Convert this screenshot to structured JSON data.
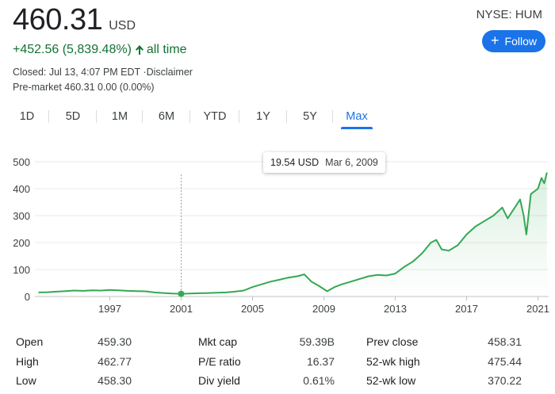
{
  "quote": {
    "price": "460.31",
    "currency": "USD",
    "change": "+452.56 (5,839.48%)",
    "change_period": "all time",
    "closed": "Closed: Jul 13, 4:07 PM EDT ·Disclaimer",
    "premarket": "Pre-market 460.31 0.00 (0.00%)",
    "ticker": "NYSE: HUM",
    "follow_label": "Follow",
    "positive_color": "#137333",
    "accent_color": "#1a73e8"
  },
  "tabs": [
    {
      "label": "1D",
      "active": false
    },
    {
      "label": "5D",
      "active": false
    },
    {
      "label": "1M",
      "active": false
    },
    {
      "label": "6M",
      "active": false
    },
    {
      "label": "YTD",
      "active": false
    },
    {
      "label": "1Y",
      "active": false
    },
    {
      "label": "5Y",
      "active": false
    },
    {
      "label": "Max",
      "active": true
    }
  ],
  "tooltip": {
    "value": "19.54 USD",
    "date": "Mar 6, 2009"
  },
  "chart_data": {
    "type": "line",
    "ylim": [
      0,
      500
    ],
    "xlim": [
      1992.8,
      2021.6
    ],
    "y_ticks": [
      0,
      100,
      200,
      300,
      400,
      500
    ],
    "x_ticks": [
      1997,
      2001,
      2005,
      2009,
      2013,
      2017,
      2021
    ],
    "grid": true,
    "line_color": "#34a853",
    "series": [
      {
        "x": [
          1993.0,
          1993.5,
          1994.0,
          1994.5,
          1995.0,
          1995.5,
          1996.0,
          1996.5,
          1997.0,
          1997.5,
          1998.0,
          1998.5,
          1999.0,
          1999.5,
          2000.0,
          2000.5,
          2001.0,
          2001.5,
          2002.0,
          2002.5,
          2003.0,
          2003.5,
          2004.0,
          2004.5,
          2005.0,
          2005.5,
          2006.0,
          2006.5,
          2007.0,
          2007.5,
          2007.9,
          2008.3,
          2008.7,
          2009.18,
          2009.6,
          2010.0,
          2010.5,
          2011.0,
          2011.5,
          2012.0,
          2012.5,
          2013.0,
          2013.5,
          2014.0,
          2014.5,
          2015.0,
          2015.3,
          2015.6,
          2016.0,
          2016.5,
          2017.0,
          2017.5,
          2018.0,
          2018.5,
          2019.0,
          2019.3,
          2019.7,
          2020.0,
          2020.2,
          2020.35,
          2020.6,
          2021.0,
          2021.2,
          2021.35,
          2021.5
        ],
        "y": [
          15,
          16,
          18,
          20,
          22,
          21,
          23,
          22,
          24,
          23,
          21,
          20,
          19,
          15,
          13,
          11,
          10,
          11,
          12,
          13,
          14,
          15,
          18,
          22,
          35,
          45,
          55,
          62,
          70,
          75,
          82,
          55,
          40,
          19.54,
          35,
          45,
          55,
          65,
          75,
          80,
          78,
          85,
          110,
          130,
          160,
          200,
          210,
          175,
          170,
          190,
          230,
          260,
          280,
          300,
          330,
          290,
          330,
          360,
          300,
          230,
          380,
          400,
          440,
          420,
          460
        ]
      }
    ]
  },
  "stats": [
    [
      {
        "label": "Open",
        "value": "459.30"
      },
      {
        "label": "Mkt cap",
        "value": "59.39B"
      },
      {
        "label": "Prev close",
        "value": "458.31"
      }
    ],
    [
      {
        "label": "High",
        "value": "462.77"
      },
      {
        "label": "P/E ratio",
        "value": "16.37"
      },
      {
        "label": "52-wk high",
        "value": "475.44"
      }
    ],
    [
      {
        "label": "Low",
        "value": "458.30"
      },
      {
        "label": "Div yield",
        "value": "0.61%"
      },
      {
        "label": "52-wk low",
        "value": "370.22"
      }
    ]
  ]
}
